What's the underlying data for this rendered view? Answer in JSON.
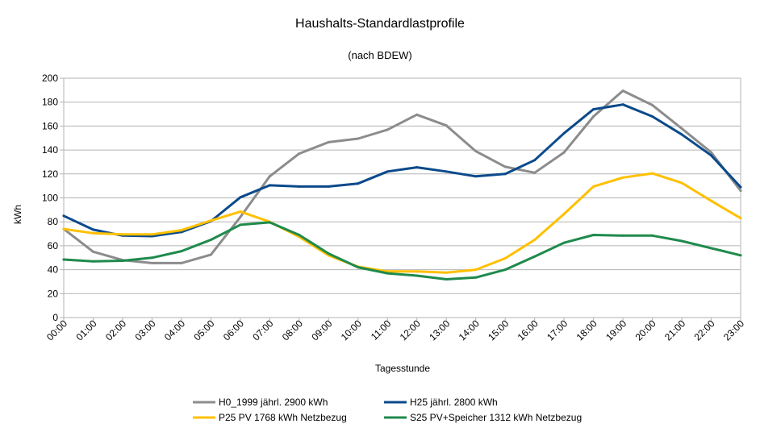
{
  "chart_data": {
    "type": "line",
    "title": "Haushalts-Standardlastprofile",
    "subtitle": "(nach BDEW)",
    "xlabel": "Tagesstunde",
    "ylabel": "kWh",
    "ylim": [
      0,
      200
    ],
    "yticks": [
      0,
      20,
      40,
      60,
      80,
      100,
      120,
      140,
      160,
      180,
      200
    ],
    "grid": "horizontal",
    "legend_position": "bottom",
    "categories": [
      "00:00",
      "01:00",
      "02:00",
      "03:00",
      "04:00",
      "05:00",
      "06:00",
      "07:00",
      "08:00",
      "09:00",
      "10:00",
      "11:00",
      "12:00",
      "13:00",
      "14:00",
      "15:00",
      "16:00",
      "17:00",
      "18:00",
      "19:00",
      "20:00",
      "21:00",
      "22:00",
      "23:00"
    ],
    "series": [
      {
        "name": "H0_1999 jährl. 2900 kWh",
        "color": "#8c8c8c",
        "values": [
          74,
          55,
          48,
          45.5,
          45.5,
          52.5,
          84,
          118,
          137,
          146.5,
          149.5,
          157,
          169.5,
          160.5,
          139,
          126,
          121,
          138,
          168,
          189.5,
          177.5,
          158,
          138,
          106
        ]
      },
      {
        "name": "H25 jährl. 2800 kWh",
        "color": "#0b4a8b",
        "values": [
          85,
          73.5,
          68.5,
          68,
          71.5,
          80.5,
          100.5,
          110.5,
          109.5,
          109.5,
          112,
          122,
          125.5,
          122,
          118,
          120,
          131.5,
          154,
          174,
          178,
          168,
          153,
          135.5,
          109
        ]
      },
      {
        "name": "P25 PV 1768 kWh Netzbezug",
        "color": "#ffc000",
        "values": [
          74,
          70.5,
          69.5,
          69.5,
          73,
          81,
          88.5,
          80,
          67.5,
          52,
          42.5,
          38.5,
          38.5,
          37.5,
          40,
          49.5,
          65,
          86.5,
          109.5,
          117,
          120.5,
          112.5,
          97.5,
          83
        ]
      },
      {
        "name": "S25 PV+Speicher 1312 kWh Netzbezug",
        "color": "#1f8a4c",
        "values": [
          48.5,
          47,
          47.5,
          50,
          55.5,
          65,
          77.5,
          79.5,
          69,
          53.5,
          42,
          37,
          35,
          32,
          33.5,
          40,
          51,
          62.5,
          69,
          68.5,
          68.5,
          64,
          58,
          52
        ]
      }
    ]
  }
}
